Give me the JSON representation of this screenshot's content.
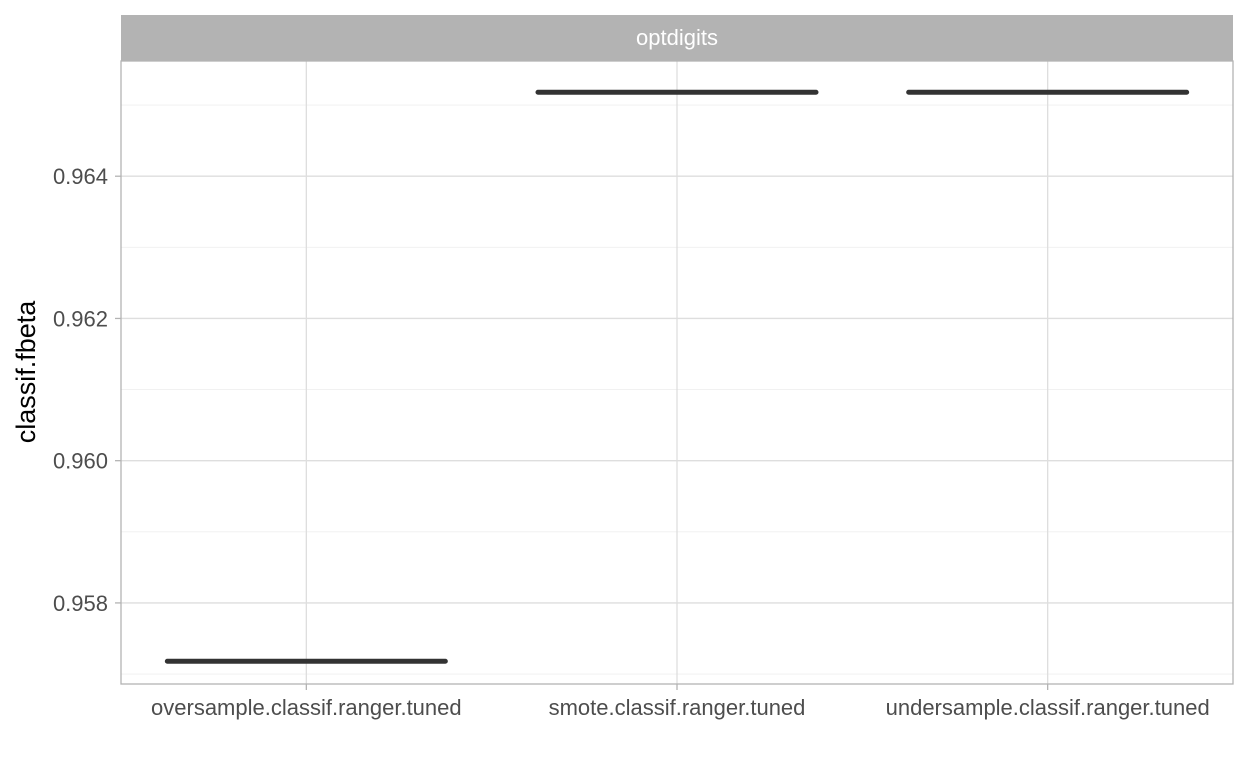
{
  "chart_data": {
    "type": "boxplot",
    "facet_label": "optdigits",
    "xlabel": "",
    "ylabel": "classif.fbeta",
    "categories": [
      "oversample.classif.ranger.tuned",
      "smote.classif.ranger.tuned",
      "undersample.classif.ranger.tuned"
    ],
    "values": [
      0.95718,
      0.96518,
      0.96518
    ],
    "ylim": [
      0.95686,
      0.96562
    ],
    "yticks": [
      0.958,
      0.96,
      0.962,
      0.964
    ],
    "ytick_labels": [
      "0.958",
      "0.960",
      "0.962",
      "0.964"
    ],
    "grid": true,
    "legend": "none"
  },
  "colors": {
    "strip_background": "#b3b3b3",
    "panel_border": "#b3b3b3",
    "median": "#333333"
  }
}
